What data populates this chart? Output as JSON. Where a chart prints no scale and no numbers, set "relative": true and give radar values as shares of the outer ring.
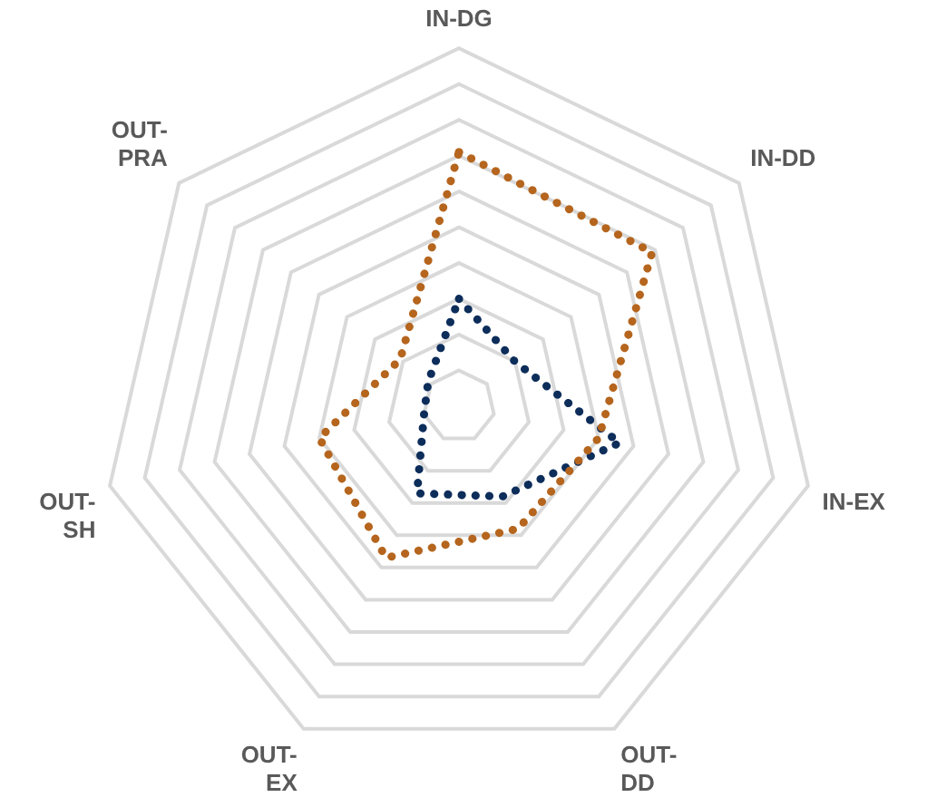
{
  "chart_data": {
    "type": "radar",
    "relative": true,
    "categories": [
      "IN-DG",
      "IN-DD",
      "IN-EX",
      "OUT-DD",
      "OUT-EX",
      "OUT-SH",
      "OUT-PRA"
    ],
    "series": [
      {
        "color": "#b5651d",
        "values": [
          0.71,
          0.69,
          0.4,
          0.38,
          0.47,
          0.4,
          0.21
        ]
      },
      {
        "color": "#0d2d5a",
        "values": [
          0.3,
          0.2,
          0.46,
          0.28,
          0.27,
          0.1,
          0.11
        ]
      }
    ],
    "grid": true,
    "legend": false,
    "marker": "none",
    "line_style": "dotted"
  }
}
